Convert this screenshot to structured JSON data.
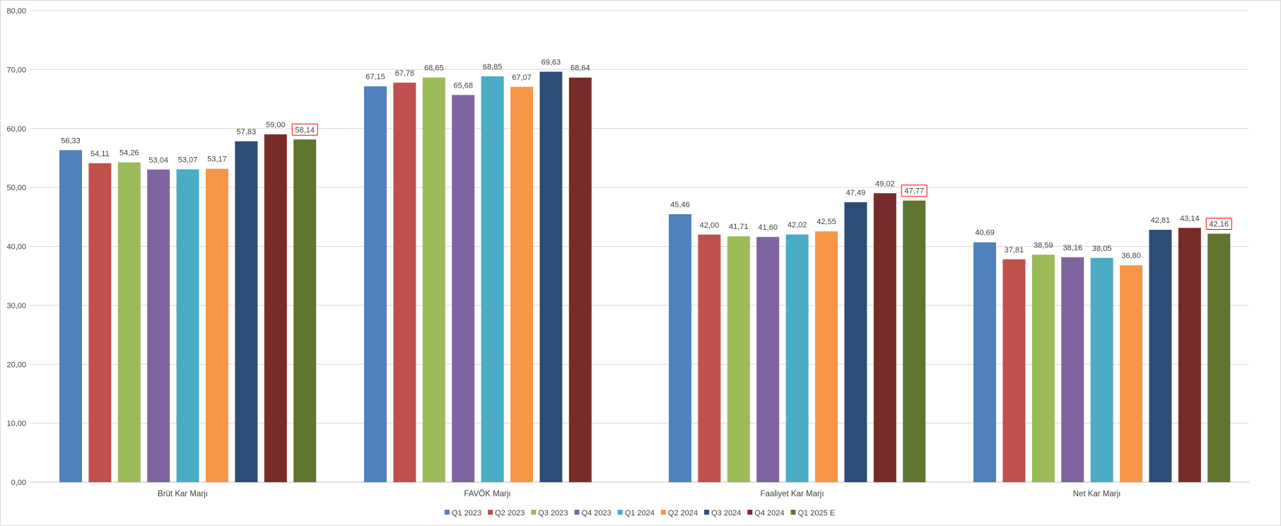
{
  "chart_data": {
    "type": "bar",
    "title": "",
    "xlabel": "",
    "ylabel": "",
    "ylim": [
      0,
      80
    ],
    "y_ticks": [
      "0,00",
      "10,00",
      "20,00",
      "30,00",
      "40,00",
      "50,00",
      "60,00",
      "70,00",
      "80,00"
    ],
    "grid": "horizontal",
    "legend_position": "bottom",
    "categories": [
      "Brüt Kar Marjı",
      "FAVÖK Marjı",
      "Faaliyet Kar Marjı",
      "Net Kar Marjı"
    ],
    "series": [
      {
        "name": "Q1 2023",
        "color": "#4f81bd",
        "values": [
          56.33,
          67.15,
          45.46,
          40.69
        ],
        "labels": [
          "56,33",
          "67,15",
          "45,46",
          "40,69"
        ]
      },
      {
        "name": "Q2 2023",
        "color": "#c0504d",
        "values": [
          54.11,
          67.78,
          42.0,
          37.81
        ],
        "labels": [
          "54,11",
          "67,78",
          "42,00",
          "37,81"
        ]
      },
      {
        "name": "Q3 2023",
        "color": "#9bbb59",
        "values": [
          54.26,
          68.65,
          41.71,
          38.59
        ],
        "labels": [
          "54,26",
          "68,65",
          "41,71",
          "38,59"
        ]
      },
      {
        "name": "Q4 2023",
        "color": "#8064a2",
        "values": [
          53.04,
          65.68,
          41.6,
          38.16
        ],
        "labels": [
          "53,04",
          "65,68",
          "41,60",
          "38,16"
        ]
      },
      {
        "name": "Q1 2024",
        "color": "#4bacc6",
        "values": [
          53.07,
          68.85,
          42.02,
          38.05
        ],
        "labels": [
          "53,07",
          "68,85",
          "42,02",
          "38,05"
        ]
      },
      {
        "name": "Q2 2024",
        "color": "#f79646",
        "values": [
          53.17,
          67.07,
          42.55,
          36.8
        ],
        "labels": [
          "53,17",
          "67,07",
          "42,55",
          "36,80"
        ]
      },
      {
        "name": "Q3 2024",
        "color": "#2c4d75",
        "values": [
          57.83,
          69.63,
          47.49,
          42.81
        ],
        "labels": [
          "57,83",
          "69,63",
          "47,49",
          "42,81"
        ]
      },
      {
        "name": "Q4 2024",
        "color": "#772c2a",
        "values": [
          59.0,
          68.64,
          49.02,
          43.14
        ],
        "labels": [
          "59,00",
          "68,64",
          "49,02",
          "43,14"
        ]
      },
      {
        "name": "Q1 2025 E",
        "color": "#5f7530",
        "values": [
          58.14,
          null,
          47.77,
          42.16
        ],
        "labels": [
          "58,14",
          "",
          "47,77",
          "42,16"
        ],
        "label_boxed": true,
        "label_box_color": "#ff0000"
      }
    ]
  }
}
